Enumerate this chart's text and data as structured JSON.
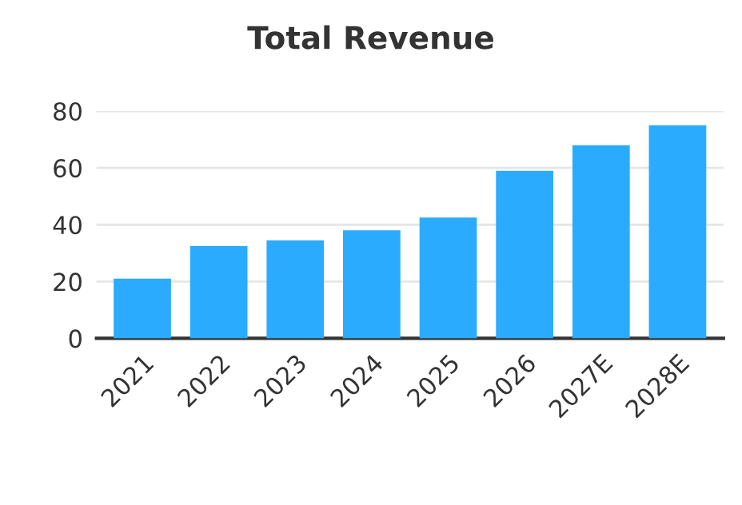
{
  "chart_data": {
    "type": "bar",
    "title": "Total Revenue",
    "categories": [
      "2021",
      "2022",
      "2023",
      "2024",
      "2025",
      "2026",
      "2027E",
      "2028E"
    ],
    "values": [
      21,
      32.5,
      34.5,
      38,
      42.5,
      59,
      68,
      75
    ],
    "color": "#2aabfe",
    "ylim": [
      0,
      80
    ],
    "yticks": [
      0,
      20,
      40,
      60,
      80
    ],
    "grid": "y",
    "legend": false
  }
}
